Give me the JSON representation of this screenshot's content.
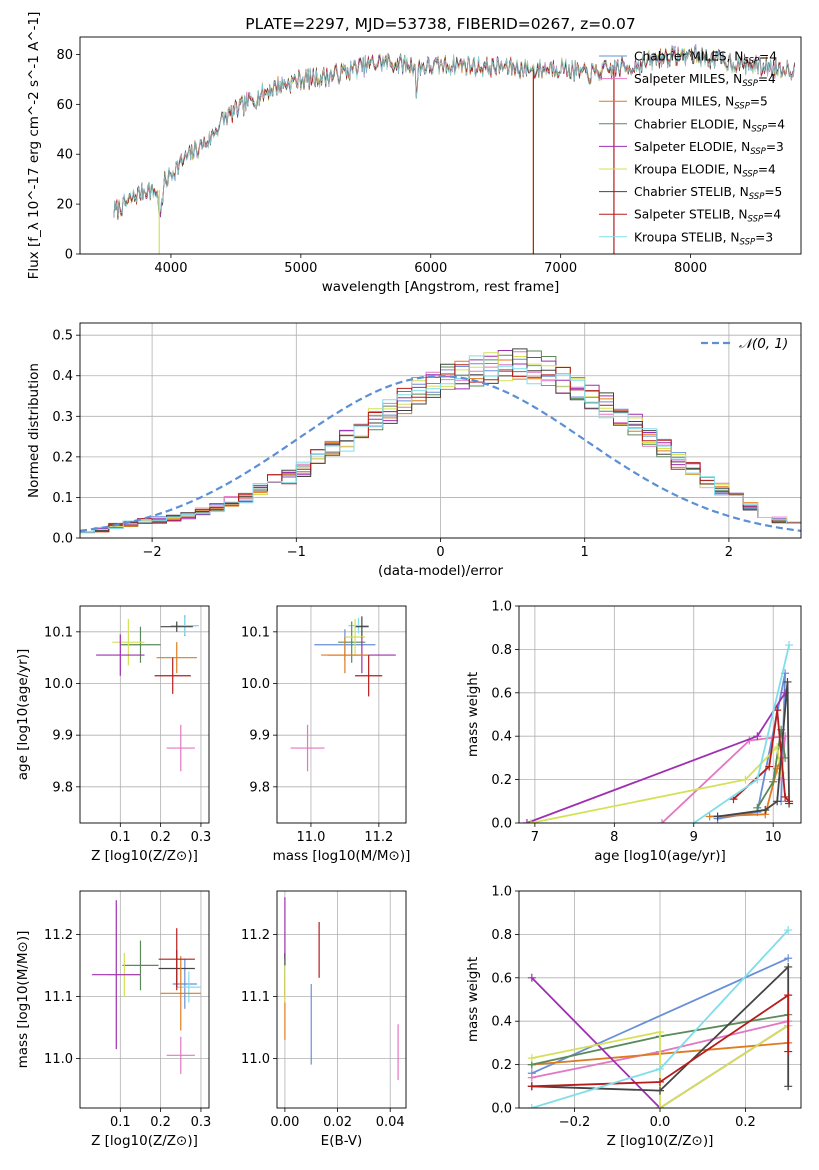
{
  "chart_data": [
    {
      "id": "spectrum",
      "type": "line",
      "title": "PLATE=2297, MJD=53738, FIBERID=0267, z=0.07",
      "xlabel": "wavelength [Angstrom, rest frame]",
      "ylabel": "Flux [f_λ 10^-17 erg cm^-2 s^-1 A^-1]",
      "xlim": [
        3300,
        8850
      ],
      "ylim": [
        0,
        87
      ],
      "xticks": [
        4000,
        5000,
        6000,
        7000,
        8000
      ],
      "yticks": [
        0,
        20,
        40,
        60,
        80
      ],
      "grid": false,
      "legend_position": "top-right",
      "continuum": {
        "x": [
          3560,
          3700,
          3800,
          3900,
          4000,
          4100,
          4200,
          4300,
          4400,
          4600,
          4800,
          5000,
          5200,
          5400,
          5600,
          5800,
          6000,
          6200,
          6400,
          6600,
          6800,
          7000,
          7200,
          7400,
          7600,
          7800,
          8000,
          8200,
          8400,
          8600,
          8800
        ],
        "y": [
          17,
          22,
          26,
          25,
          32,
          38,
          42,
          46,
          54,
          61,
          67,
          70,
          71,
          74,
          77,
          76,
          75,
          76,
          75,
          75,
          74,
          75,
          72,
          74,
          76,
          79,
          80,
          78,
          76,
          75,
          74
        ]
      },
      "series": [
        {
          "name": "Chabrier MILES, N_SSP=4",
          "color": "#6a8fd8"
        },
        {
          "name": "Salpeter MILES, N_SSP=4",
          "color": "#e377c2"
        },
        {
          "name": "Kroupa MILES, N_SSP=5",
          "color": "#e07a1f"
        },
        {
          "name": "Chabrier ELODIE, N_SSP=4",
          "color": "#5a8a5a"
        },
        {
          "name": "Salpeter ELODIE, N_SSP=3",
          "color": "#9e2fb0"
        },
        {
          "name": "Kroupa ELODIE, N_SSP=4",
          "color": "#d4e157"
        },
        {
          "name": "Chabrier STELIB, N_SSP=5",
          "color": "#444444"
        },
        {
          "name": "Salpeter STELIB, N_SSP=4",
          "color": "#b71c1c"
        },
        {
          "name": "Kroupa STELIB, N_SSP=3",
          "color": "#80deea"
        }
      ],
      "drops": [
        {
          "series": "Kroupa ELODIE, N_SSP=4",
          "x": 3910
        },
        {
          "series": "Kroupa ELODIE, N_SSP=4",
          "x": 6790
        },
        {
          "series": "Salpeter STELIB, N_SSP=4",
          "x": 6790
        },
        {
          "series": "Salpeter STELIB, N_SSP=4",
          "x": 7410
        }
      ]
    },
    {
      "id": "residuals",
      "type": "histogram",
      "xlabel": "(data-model)/error",
      "ylabel": "Normed distribution",
      "xlim": [
        -2.5,
        2.5
      ],
      "ylim": [
        0,
        0.53
      ],
      "xticks": [
        -2,
        -1,
        0,
        1,
        2
      ],
      "yticks": [
        0.0,
        0.1,
        0.2,
        0.3,
        0.4,
        0.5
      ],
      "grid": true,
      "bins": {
        "start": -2.5,
        "width": 0.1,
        "count": 50
      },
      "base_counts": [
        0.015,
        0.02,
        0.03,
        0.035,
        0.04,
        0.045,
        0.05,
        0.055,
        0.065,
        0.075,
        0.09,
        0.1,
        0.12,
        0.14,
        0.15,
        0.17,
        0.2,
        0.22,
        0.24,
        0.27,
        0.29,
        0.31,
        0.34,
        0.36,
        0.38,
        0.39,
        0.4,
        0.41,
        0.42,
        0.43,
        0.43,
        0.42,
        0.41,
        0.39,
        0.37,
        0.35,
        0.33,
        0.3,
        0.28,
        0.25,
        0.22,
        0.19,
        0.17,
        0.14,
        0.12,
        0.1,
        0.08,
        0.06,
        0.045,
        0.035
      ],
      "normal_curve_label": "𝒩(0, 1)",
      "normal_curve_color": "#5b8fd6"
    },
    {
      "id": "age_vs_Z",
      "type": "errorbar",
      "xlabel": "Z [log10(Z/Z⊙)]",
      "ylabel": "age  [log10(age/yr)]",
      "xlim": [
        0.0,
        0.32
      ],
      "ylim": [
        9.73,
        10.15
      ],
      "xticks": [
        0.1,
        0.2,
        0.3
      ],
      "yticks": [
        9.8,
        9.9,
        10.0,
        10.1
      ],
      "grid": true,
      "points": [
        {
          "x": 0.26,
          "y": 10.112,
          "xerr": 0.03,
          "yerr": 0.02,
          "color": "#6a8fd8"
        },
        {
          "x": 0.26,
          "y": 10.112,
          "xerr": 0.035,
          "yerr": 0.018,
          "color": "#80deea"
        },
        {
          "x": 0.24,
          "y": 10.11,
          "xerr": 0.04,
          "yerr": 0.01,
          "color": "#444444"
        },
        {
          "x": 0.15,
          "y": 10.075,
          "xerr": 0.05,
          "yerr": 0.035,
          "color": "#5a8a5a"
        },
        {
          "x": 0.12,
          "y": 10.08,
          "xerr": 0.04,
          "yerr": 0.045,
          "color": "#d4e157"
        },
        {
          "x": 0.1,
          "y": 10.055,
          "xerr": 0.06,
          "yerr": 0.04,
          "color": "#9e2fb0"
        },
        {
          "x": 0.24,
          "y": 10.05,
          "xerr": 0.05,
          "yerr": 0.03,
          "color": "#e07a1f"
        },
        {
          "x": 0.23,
          "y": 10.015,
          "xerr": 0.045,
          "yerr": 0.035,
          "color": "#b71c1c"
        },
        {
          "x": 0.25,
          "y": 9.875,
          "xerr": 0.035,
          "yerr": 0.045,
          "color": "#e377c2"
        }
      ]
    },
    {
      "id": "age_vs_mass",
      "type": "errorbar",
      "xlabel": "mass [log10(M/M⊙)]",
      "xlim": [
        10.9,
        11.28
      ],
      "ylim": [
        9.73,
        10.15
      ],
      "xticks": [
        11.0,
        11.2
      ],
      "yticks": [
        9.8,
        9.9,
        10.0,
        10.1
      ],
      "grid": true,
      "points": [
        {
          "x": 11.1,
          "y": 10.075,
          "xerr": 0.09,
          "yerr": 0.03,
          "color": "#6a8fd8"
        },
        {
          "x": 11.14,
          "y": 10.112,
          "xerr": 0.03,
          "yerr": 0.015,
          "color": "#80deea"
        },
        {
          "x": 11.15,
          "y": 10.11,
          "xerr": 0.02,
          "yerr": 0.02,
          "color": "#444444"
        },
        {
          "x": 11.12,
          "y": 10.08,
          "xerr": 0.04,
          "yerr": 0.04,
          "color": "#5a8a5a"
        },
        {
          "x": 11.13,
          "y": 10.09,
          "xerr": 0.03,
          "yerr": 0.035,
          "color": "#d4e157"
        },
        {
          "x": 11.15,
          "y": 10.055,
          "xerr": 0.1,
          "yerr": 0.035,
          "color": "#9e2fb0"
        },
        {
          "x": 11.1,
          "y": 10.055,
          "xerr": 0.07,
          "yerr": 0.035,
          "color": "#e07a1f"
        },
        {
          "x": 11.17,
          "y": 10.015,
          "xerr": 0.04,
          "yerr": 0.04,
          "color": "#b71c1c"
        },
        {
          "x": 10.99,
          "y": 9.875,
          "xerr": 0.05,
          "yerr": 0.045,
          "color": "#e377c2"
        }
      ]
    },
    {
      "id": "massweight_vs_age",
      "type": "line",
      "xlabel": "age  [log10(age/yr)]",
      "ylabel": "mass weight",
      "xlim": [
        6.8,
        10.35
      ],
      "ylim": [
        0,
        1.0
      ],
      "xticks": [
        7,
        8,
        9,
        10
      ],
      "yticks": [
        0.0,
        0.2,
        0.4,
        0.6,
        0.8,
        1.0
      ],
      "grid": true,
      "series": [
        {
          "color": "#6a8fd8",
          "x": [
            9.3,
            9.8,
            10.15,
            10.1
          ],
          "y": [
            0.02,
            0.05,
            0.69,
            0.1
          ]
        },
        {
          "color": "#e377c2",
          "x": [
            8.6,
            9.7,
            10.15,
            10.1
          ],
          "y": [
            0.0,
            0.38,
            0.4,
            0.2
          ]
        },
        {
          "color": "#e07a1f",
          "x": [
            9.2,
            9.9,
            10.05,
            10.1
          ],
          "y": [
            0.03,
            0.04,
            0.25,
            0.3
          ]
        },
        {
          "color": "#5a8a5a",
          "x": [
            9.8,
            10.0,
            10.1,
            10.15
          ],
          "y": [
            0.07,
            0.19,
            0.43,
            0.3
          ]
        },
        {
          "color": "#9e2fb0",
          "x": [
            6.9,
            9.8,
            10.15
          ],
          "y": [
            0.0,
            0.4,
            0.6
          ]
        },
        {
          "color": "#d4e157",
          "x": [
            6.95,
            9.65,
            10.05,
            10.1
          ],
          "y": [
            0.0,
            0.2,
            0.35,
            0.23
          ]
        },
        {
          "color": "#444444",
          "x": [
            9.3,
            9.9,
            10.05,
            10.18,
            10.2
          ],
          "y": [
            0.03,
            0.06,
            0.1,
            0.65,
            0.09
          ]
        },
        {
          "color": "#b71c1c",
          "x": [
            9.5,
            9.95,
            10.05,
            10.15,
            10.2
          ],
          "y": [
            0.11,
            0.26,
            0.52,
            0.12,
            0.1
          ]
        },
        {
          "color": "#80deea",
          "x": [
            9.0,
            9.8,
            10.2
          ],
          "y": [
            0.0,
            0.2,
            0.82
          ]
        }
      ]
    },
    {
      "id": "mass_vs_Z",
      "type": "errorbar",
      "xlabel": "Z [log10(Z/Z⊙)]",
      "ylabel": "mass [log10(M/M⊙)]",
      "xlim": [
        0.0,
        0.32
      ],
      "ylim": [
        10.92,
        11.27
      ],
      "xticks": [
        0.1,
        0.2,
        0.3
      ],
      "yticks": [
        11.0,
        11.1,
        11.2
      ],
      "grid": true,
      "points": [
        {
          "x": 0.26,
          "y": 11.12,
          "xerr": 0.03,
          "yerr": 0.04,
          "color": "#6a8fd8"
        },
        {
          "x": 0.27,
          "y": 11.115,
          "xerr": 0.03,
          "yerr": 0.025,
          "color": "#80deea"
        },
        {
          "x": 0.24,
          "y": 11.145,
          "xerr": 0.045,
          "yerr": 0.03,
          "color": "#444444"
        },
        {
          "x": 0.15,
          "y": 11.15,
          "xerr": 0.045,
          "yerr": 0.04,
          "color": "#5a8a5a"
        },
        {
          "x": 0.11,
          "y": 11.135,
          "xerr": 0.04,
          "yerr": 0.035,
          "color": "#d4e157"
        },
        {
          "x": 0.09,
          "y": 11.135,
          "xerr": 0.06,
          "yerr": 0.12,
          "color": "#9e2fb0"
        },
        {
          "x": 0.25,
          "y": 11.105,
          "xerr": 0.05,
          "yerr": 0.06,
          "color": "#e07a1f"
        },
        {
          "x": 0.24,
          "y": 11.16,
          "xerr": 0.045,
          "yerr": 0.05,
          "color": "#b71c1c"
        },
        {
          "x": 0.25,
          "y": 11.005,
          "xerr": 0.035,
          "yerr": 0.03,
          "color": "#e377c2"
        }
      ]
    },
    {
      "id": "mass_vs_ebv",
      "type": "errorbar",
      "xlabel": "E(B-V)",
      "xlim": [
        -0.003,
        0.046
      ],
      "ylim": [
        10.92,
        11.27
      ],
      "xticks": [
        0.0,
        0.02,
        0.04
      ],
      "yticks": [
        11.0,
        11.1,
        11.2
      ],
      "grid": true,
      "points": [
        {
          "x": 0.0,
          "y": 11.21,
          "xerr": 0,
          "yerr": 0.05,
          "color": "#9e2fb0"
        },
        {
          "x": 0.0,
          "y": 11.135,
          "xerr": 0,
          "yerr": 0.035,
          "color": "#444444"
        },
        {
          "x": 0.0,
          "y": 11.08,
          "xerr": 0,
          "yerr": 0.05,
          "color": "#e07a1f"
        },
        {
          "x": 0.0,
          "y": 11.12,
          "xerr": 0,
          "yerr": 0.03,
          "color": "#d4e157"
        },
        {
          "x": 0.01,
          "y": 11.055,
          "xerr": 0,
          "yerr": 0.065,
          "color": "#6a8fd8"
        },
        {
          "x": 0.013,
          "y": 11.175,
          "xerr": 0,
          "yerr": 0.045,
          "color": "#b71c1c"
        },
        {
          "x": 0.043,
          "y": 11.01,
          "xerr": 0,
          "yerr": 0.045,
          "color": "#e377c2"
        }
      ]
    },
    {
      "id": "massweight_vs_Z",
      "type": "line",
      "xlabel": "Z [log10(Z/Z⊙)]",
      "ylabel": "mass weight",
      "xlim": [
        -0.33,
        0.33
      ],
      "ylim": [
        0,
        1.0
      ],
      "xticks": [
        -0.2,
        0.0,
        0.2
      ],
      "yticks": [
        0.0,
        0.2,
        0.4,
        0.6,
        0.8,
        1.0
      ],
      "grid": true,
      "series": [
        {
          "color": "#6a8fd8",
          "x": [
            -0.3,
            0.3
          ],
          "y": [
            0.16,
            0.69
          ]
        },
        {
          "color": "#e377c2",
          "x": [
            -0.3,
            0.0,
            0.3
          ],
          "y": [
            0.14,
            0.26,
            0.4
          ]
        },
        {
          "color": "#e07a1f",
          "x": [
            -0.3,
            0.0,
            0.3
          ],
          "y": [
            0.2,
            0.25,
            0.3
          ]
        },
        {
          "color": "#5a8a5a",
          "x": [
            -0.3,
            0.0,
            0.3
          ],
          "y": [
            0.2,
            0.33,
            0.43
          ]
        },
        {
          "color": "#9e2fb0",
          "x": [
            -0.3,
            0.0,
            0.3
          ],
          "y": [
            0.6,
            0.0,
            0.38
          ]
        },
        {
          "color": "#d4e157",
          "x": [
            -0.3,
            0.0,
            0.0,
            0.3
          ],
          "y": [
            0.23,
            0.35,
            0.0,
            0.38
          ]
        },
        {
          "color": "#444444",
          "x": [
            -0.3,
            0.0,
            0.3,
            0.3
          ],
          "y": [
            0.1,
            0.08,
            0.65,
            0.1
          ]
        },
        {
          "color": "#b71c1c",
          "x": [
            -0.3,
            0.0,
            0.3,
            0.3
          ],
          "y": [
            0.1,
            0.12,
            0.52,
            0.26
          ]
        },
        {
          "color": "#80deea",
          "x": [
            -0.3,
            0.0,
            0.3
          ],
          "y": [
            0.0,
            0.18,
            0.82
          ]
        }
      ]
    }
  ]
}
